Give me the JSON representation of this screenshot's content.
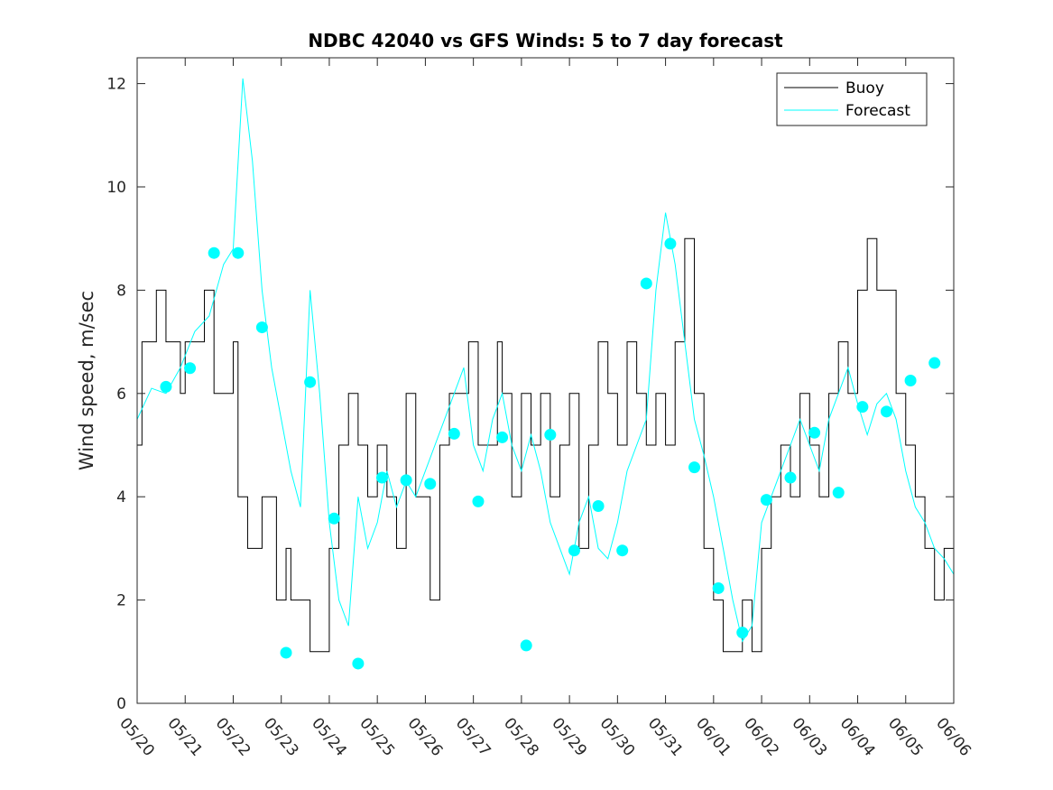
{
  "chart_data": {
    "type": "line",
    "title": "NDBC 42040 vs GFS Winds: 5 to 7 day forecast",
    "xlabel": "",
    "ylabel": "Wind speed, m/sec",
    "xlim": [
      0,
      17
    ],
    "ylim": [
      0,
      12.5
    ],
    "yticks": [
      0,
      2,
      4,
      6,
      8,
      10,
      12
    ],
    "x_tick_labels": [
      "05/20",
      "05/21",
      "05/22",
      "05/23",
      "05/24",
      "05/25",
      "05/26",
      "05/27",
      "05/28",
      "05/29",
      "05/30",
      "05/31",
      "06/01",
      "06/02",
      "06/03",
      "06/04",
      "06/05",
      "06/06"
    ],
    "legend": {
      "position": "top-right",
      "entries": [
        "Buoy",
        "Forecast"
      ]
    },
    "colors": {
      "buoy": "#000000",
      "forecast": "#00ffff",
      "markers": "#00ffff",
      "axis": "#262626"
    },
    "series": [
      {
        "name": "Buoy",
        "x": [
          0,
          0.1,
          0.3,
          0.4,
          0.6,
          0.9,
          1.0,
          1.2,
          1.4,
          1.6,
          1.9,
          2.0,
          2.1,
          2.3,
          2.6,
          2.9,
          3.1,
          3.2,
          3.4,
          3.6,
          3.8,
          4.0,
          4.2,
          4.4,
          4.6,
          4.8,
          5.0,
          5.2,
          5.4,
          5.6,
          5.8,
          5.9,
          6.1,
          6.3,
          6.5,
          6.7,
          6.9,
          7.1,
          7.3,
          7.5,
          7.6,
          7.8,
          8.0,
          8.2,
          8.4,
          8.6,
          8.8,
          9.0,
          9.2,
          9.4,
          9.6,
          9.8,
          10.0,
          10.2,
          10.4,
          10.6,
          10.8,
          11.0,
          11.2,
          11.4,
          11.6,
          11.8,
          12.0,
          12.2,
          12.4,
          12.6,
          12.8,
          13.0,
          13.2,
          13.4,
          13.6,
          13.8,
          14.0,
          14.2,
          14.4,
          14.6,
          14.8,
          15.0,
          15.2,
          15.4,
          15.6,
          15.8,
          16.0,
          16.2,
          16.4,
          16.6,
          16.8,
          17.0
        ],
        "values": [
          5,
          7,
          7,
          8,
          7,
          6,
          7,
          7,
          8,
          6,
          6,
          7,
          4,
          3,
          4,
          2,
          3,
          2,
          2,
          1,
          1,
          3,
          5,
          6,
          5,
          4,
          5,
          4,
          3,
          6,
          4,
          4,
          2,
          5,
          6,
          6,
          7,
          5,
          5,
          7,
          6,
          4,
          6,
          5,
          6,
          4,
          5,
          6,
          3,
          5,
          7,
          6,
          5,
          7,
          6,
          5,
          6,
          5,
          7,
          9,
          6,
          3,
          2,
          1,
          1,
          2,
          1,
          3,
          4,
          5,
          4,
          6,
          5,
          4,
          6,
          7,
          6,
          8,
          9,
          8,
          8,
          6,
          5,
          4,
          3,
          2,
          3,
          4
        ]
      },
      {
        "name": "Forecast",
        "x": [
          0,
          0.3,
          0.6,
          0.9,
          1.2,
          1.5,
          1.8,
          2.0,
          2.2,
          2.4,
          2.6,
          2.8,
          3.0,
          3.2,
          3.4,
          3.6,
          3.8,
          4.0,
          4.2,
          4.4,
          4.6,
          4.8,
          5.0,
          5.2,
          5.4,
          5.6,
          5.8,
          6.0,
          6.2,
          6.4,
          6.6,
          6.8,
          7.0,
          7.2,
          7.4,
          7.6,
          7.8,
          8.0,
          8.2,
          8.4,
          8.6,
          8.8,
          9.0,
          9.2,
          9.4,
          9.6,
          9.8,
          10.0,
          10.2,
          10.4,
          10.6,
          10.8,
          11.0,
          11.2,
          11.4,
          11.6,
          11.8,
          12.0,
          12.2,
          12.4,
          12.6,
          12.8,
          13.0,
          13.2,
          13.4,
          13.6,
          13.8,
          14.0,
          14.2,
          14.4,
          14.6,
          14.8,
          15.0,
          15.2,
          15.4,
          15.6,
          15.8,
          16.0,
          16.2,
          16.4,
          16.6,
          16.8,
          17.0
        ],
        "values": [
          5.5,
          6.1,
          6.0,
          6.5,
          7.2,
          7.5,
          8.5,
          8.8,
          12.1,
          10.5,
          8.0,
          6.5,
          5.5,
          4.5,
          3.8,
          8.0,
          6.0,
          3.5,
          2.0,
          1.5,
          4.0,
          3.0,
          3.5,
          4.5,
          3.8,
          4.3,
          4.0,
          4.5,
          5.0,
          5.5,
          6.0,
          6.5,
          5.0,
          4.5,
          5.5,
          6.0,
          5.0,
          4.5,
          5.2,
          4.5,
          3.5,
          3.0,
          2.5,
          3.5,
          4.0,
          3.0,
          2.8,
          3.5,
          4.5,
          5.0,
          5.5,
          8.0,
          9.5,
          8.5,
          7.0,
          5.5,
          4.8,
          4.0,
          3.0,
          2.0,
          1.2,
          1.5,
          3.5,
          4.0,
          4.5,
          5.0,
          5.5,
          5.0,
          4.5,
          5.5,
          6.0,
          6.5,
          5.8,
          5.2,
          5.8,
          6.0,
          5.5,
          4.5,
          3.8,
          3.5,
          3.0,
          2.8,
          2.5
        ]
      }
    ],
    "forecast_markers": {
      "x": [
        0.6,
        1.1,
        1.6,
        2.1,
        2.6,
        3.1,
        3.6,
        4.1,
        4.6,
        5.1,
        5.6,
        6.1,
        6.6,
        7.1,
        7.6,
        8.1,
        8.6,
        9.1,
        9.6,
        10.1,
        10.6,
        11.1,
        11.6,
        12.1,
        12.6,
        13.1,
        13.6,
        14.1,
        14.6,
        15.1,
        15.6,
        16.1,
        16.6
      ],
      "values": [
        6.13,
        6.49,
        8.72,
        8.72,
        7.28,
        0.98,
        6.22,
        3.58,
        0.77,
        4.37,
        4.32,
        4.25,
        5.22,
        3.91,
        5.15,
        1.12,
        5.2,
        2.96,
        3.82,
        2.96,
        8.13,
        8.9,
        4.57,
        2.23,
        1.37,
        3.94,
        4.37,
        5.24,
        4.08,
        5.74,
        5.65,
        6.25,
        6.59
      ]
    }
  }
}
